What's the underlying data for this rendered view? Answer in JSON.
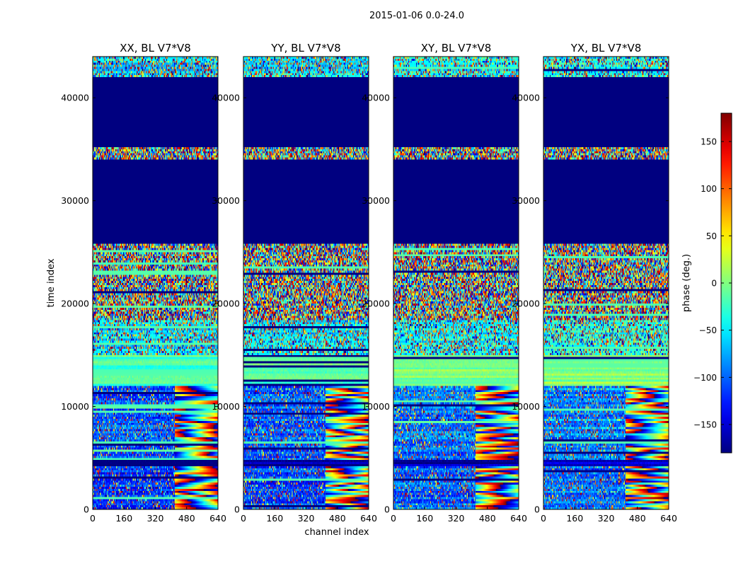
{
  "chart_data": {
    "type": "heatmap",
    "suptitle": "2015-01-06 0.0-24.0",
    "xlabel": "channel index",
    "ylabel": "time index",
    "xlim": [
      0,
      640
    ],
    "ylim": [
      0,
      44000
    ],
    "xticks": [
      0,
      160,
      320,
      480,
      640
    ],
    "yticks": [
      0,
      10000,
      20000,
      30000,
      40000
    ],
    "colormap": "jet",
    "colorbar": {
      "label": "phase (deg.)",
      "range": [
        -180,
        180
      ],
      "ticks": [
        -150,
        -100,
        -50,
        0,
        50,
        100,
        150
      ],
      "tick_labels": [
        "−150",
        "−100",
        "−50",
        "0",
        "50",
        "100",
        "150"
      ]
    },
    "panels": [
      {
        "title": "XX, BL V7*V8",
        "polarization": "XX",
        "baseline": "V7*V8"
      },
      {
        "title": "YY, BL V7*V8",
        "polarization": "YY",
        "baseline": "V7*V8"
      },
      {
        "title": "XY, BL V7*V8",
        "polarization": "XY",
        "baseline": "V7*V8"
      },
      {
        "title": "YX, BL V7*V8",
        "polarization": "YX",
        "baseline": "V7*V8"
      }
    ],
    "flagged_time_ranges": [
      [
        25800,
        34000
      ],
      [
        35300,
        42000
      ]
    ],
    "flag_value": -180,
    "row_bands": [
      {
        "t0": 0,
        "t1": 4200,
        "pattern": "fringe",
        "base": -120
      },
      {
        "t0": 4200,
        "t1": 4900,
        "pattern": "flat",
        "base": -180
      },
      {
        "t0": 4900,
        "t1": 12000,
        "pattern": "fringe",
        "base": -110
      },
      {
        "t0": 12000,
        "t1": 15000,
        "pattern": "flat",
        "base": -20
      },
      {
        "t0": 15000,
        "t1": 18500,
        "pattern": "mixed",
        "base": -60
      },
      {
        "t0": 18500,
        "t1": 21500,
        "pattern": "noise",
        "base": 0
      },
      {
        "t0": 21500,
        "t1": 25800,
        "pattern": "noise",
        "base": 0
      },
      {
        "t0": 25800,
        "t1": 34000,
        "pattern": "flagged",
        "base": -180
      },
      {
        "t0": 34000,
        "t1": 35300,
        "pattern": "noise",
        "base": -40
      },
      {
        "t0": 35300,
        "t1": 42000,
        "pattern": "flagged",
        "base": -180
      },
      {
        "t0": 42000,
        "t1": 44000,
        "pattern": "mixed",
        "base": -60
      }
    ]
  }
}
